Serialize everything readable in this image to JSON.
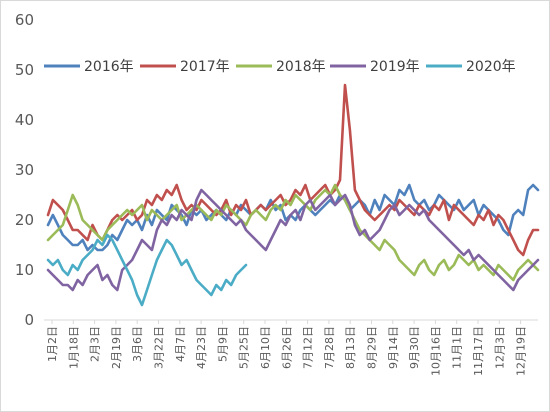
{
  "chart_data": {
    "type": "line",
    "title": "",
    "xlabel": "",
    "ylabel": "",
    "ylim": [
      0,
      60
    ],
    "y_ticks": [
      0,
      10,
      20,
      30,
      40,
      50,
      60
    ],
    "grid": false,
    "legend_position": "top",
    "x_tick_labels": [
      "1月2日",
      "1月18日",
      "2月3日",
      "2月19日",
      "3月6日",
      "3月22日",
      "4月7日",
      "4月23日",
      "5月9日",
      "5月25日",
      "6月10日",
      "6月26日",
      "7月12日",
      "7月28日",
      "8月13日",
      "8月29日",
      "9月14日",
      "9月30日",
      "10月16日",
      "11月1日",
      "11月17日",
      "12月3日",
      "12月19日"
    ],
    "series": [
      {
        "name": "2016年",
        "color": "#4F81BD",
        "values": [
          19,
          21,
          19,
          17,
          16,
          15,
          15,
          16,
          14,
          15,
          14,
          14,
          15,
          17,
          16,
          18,
          20,
          19,
          20,
          18,
          21,
          19,
          22,
          21,
          20,
          23,
          22,
          21,
          19,
          22,
          21,
          22,
          20,
          21,
          22,
          21,
          20,
          22,
          21,
          23,
          22,
          21,
          22,
          23,
          22,
          24,
          22,
          23,
          20,
          21,
          20,
          22,
          23,
          22,
          21,
          22,
          23,
          24,
          23,
          25,
          24,
          22,
          23,
          24,
          23,
          21,
          24,
          22,
          25,
          24,
          23,
          26,
          25,
          27,
          24,
          23,
          24,
          22,
          23,
          25,
          24,
          23,
          22,
          24,
          22,
          23,
          24,
          21,
          23,
          22,
          21,
          20,
          18,
          17,
          21,
          22,
          21,
          26,
          27,
          26
        ]
      },
      {
        "name": "2017年",
        "color": "#C0504D",
        "values": [
          21,
          24,
          23,
          22,
          20,
          18,
          18,
          17,
          16,
          19,
          17,
          16,
          18,
          20,
          21,
          20,
          21,
          22,
          20,
          21,
          24,
          23,
          25,
          24,
          26,
          25,
          27,
          24,
          22,
          23,
          22,
          24,
          23,
          22,
          21,
          22,
          24,
          21,
          23,
          22,
          24,
          21,
          22,
          23,
          22,
          23,
          24,
          25,
          23,
          24,
          26,
          25,
          27,
          24,
          25,
          26,
          27,
          25,
          26,
          28,
          47,
          38,
          26,
          24,
          22,
          21,
          20,
          21,
          22,
          23,
          22,
          24,
          23,
          22,
          21,
          23,
          22,
          21,
          23,
          22,
          24,
          20,
          23,
          22,
          21,
          20,
          19,
          21,
          20,
          22,
          19,
          21,
          20,
          18,
          16,
          14,
          13,
          16,
          18,
          18
        ]
      },
      {
        "name": "2018年",
        "color": "#9BBB59",
        "values": [
          16,
          17,
          18,
          19,
          22,
          25,
          23,
          20,
          19,
          18,
          17,
          16,
          18,
          19,
          20,
          21,
          22,
          21,
          22,
          23,
          20,
          22,
          21,
          20,
          21,
          22,
          23,
          20,
          21,
          22,
          23,
          22,
          21,
          20,
          22,
          21,
          23,
          22,
          21,
          20,
          19,
          21,
          22,
          21,
          20,
          22,
          23,
          22,
          24,
          23,
          25,
          24,
          23,
          22,
          24,
          25,
          26,
          25,
          27,
          25,
          24,
          22,
          20,
          18,
          17,
          16,
          15,
          14,
          16,
          15,
          14,
          12,
          11,
          10,
          9,
          11,
          12,
          10,
          9,
          11,
          12,
          10,
          11,
          13,
          12,
          11,
          12,
          10,
          11,
          10,
          9,
          11,
          10,
          9,
          8,
          10,
          11,
          12,
          11,
          10
        ]
      },
      {
        "name": "2019年",
        "color": "#8064A2",
        "values": [
          10,
          9,
          8,
          7,
          7,
          6,
          8,
          7,
          9,
          10,
          11,
          8,
          9,
          7,
          6,
          10,
          11,
          12,
          14,
          16,
          15,
          14,
          18,
          20,
          19,
          21,
          20,
          22,
          21,
          20,
          24,
          26,
          25,
          24,
          23,
          22,
          21,
          20,
          19,
          20,
          18,
          17,
          16,
          15,
          14,
          16,
          18,
          20,
          19,
          21,
          22,
          20,
          23,
          24,
          22,
          23,
          24,
          25,
          23,
          24,
          25,
          23,
          19,
          17,
          18,
          16,
          17,
          18,
          20,
          22,
          23,
          21,
          22,
          23,
          22,
          21,
          22,
          20,
          19,
          18,
          17,
          16,
          15,
          14,
          13,
          14,
          12,
          13,
          12,
          11,
          10,
          9,
          8,
          7,
          6,
          8,
          9,
          10,
          11,
          12
        ]
      },
      {
        "name": "2020年",
        "color": "#4BACC6",
        "values": [
          12,
          11,
          12,
          10,
          9,
          11,
          10,
          12,
          13,
          14,
          16,
          15,
          17,
          16,
          14,
          12,
          10,
          8,
          5,
          3,
          6,
          9,
          12,
          14,
          16,
          15,
          13,
          11,
          12,
          10,
          8,
          7,
          6,
          5,
          7,
          6,
          8,
          7,
          9,
          10,
          11
        ]
      }
    ]
  }
}
